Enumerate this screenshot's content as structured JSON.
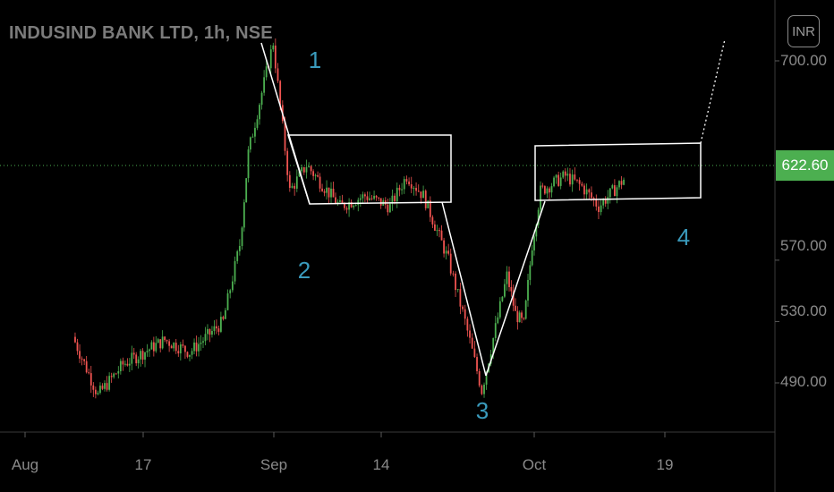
{
  "header": {
    "symbol_title": "INDUSIND BANK LTD, 1h, NSE",
    "currency": "INR"
  },
  "colors": {
    "up": "#4caf50",
    "down": "#ef5350",
    "annotation": "#ffffff",
    "wave_label": "#3a9bbd",
    "axis_text": "#8a8a8a",
    "price_line": "#4caf50"
  },
  "chart_data": {
    "type": "candlestick",
    "xlabel": "",
    "ylabel": "",
    "ylim": [
      470,
      715
    ],
    "y_ticks": [
      "700.00",
      "570.00",
      "530.00",
      "490.00"
    ],
    "x_ticks": [
      "Aug",
      "17",
      "Sep",
      "14",
      "Oct",
      "19"
    ],
    "last_price": "622.60",
    "grid": false,
    "wave_labels": [
      "1",
      "2",
      "3",
      "4"
    ],
    "waypoints": [
      {
        "date": "Aug 7",
        "price": 520
      },
      {
        "date": "Aug 10",
        "price": 482
      },
      {
        "date": "Aug 13",
        "price": 502
      },
      {
        "date": "Aug 18",
        "price": 518
      },
      {
        "date": "Aug 21",
        "price": 510
      },
      {
        "date": "Aug 25",
        "price": 530
      },
      {
        "date": "Aug 27",
        "price": 580
      },
      {
        "date": "Aug 28",
        "price": 640
      },
      {
        "date": "Aug 31",
        "price": 712
      },
      {
        "date": "Sep 2",
        "price": 615
      },
      {
        "date": "Sep 4",
        "price": 632
      },
      {
        "date": "Sep 8",
        "price": 605
      },
      {
        "date": "Sep 11",
        "price": 612
      },
      {
        "date": "Sep 14",
        "price": 605
      },
      {
        "date": "Sep 16",
        "price": 625
      },
      {
        "date": "Sep 18",
        "price": 612
      },
      {
        "date": "Sep 21",
        "price": 570
      },
      {
        "date": "Sep 23",
        "price": 530
      },
      {
        "date": "Sep 25",
        "price": 485
      },
      {
        "date": "Sep 28",
        "price": 560
      },
      {
        "date": "Sep 29",
        "price": 535
      },
      {
        "date": "Sep 30",
        "price": 528
      },
      {
        "date": "Oct 1",
        "price": 580
      },
      {
        "date": "Oct 2",
        "price": 615
      },
      {
        "date": "Oct 5",
        "price": 625
      },
      {
        "date": "Oct 7",
        "price": 618
      },
      {
        "date": "Oct 9",
        "price": 605
      },
      {
        "date": "Oct 12",
        "price": 622.6
      }
    ]
  }
}
